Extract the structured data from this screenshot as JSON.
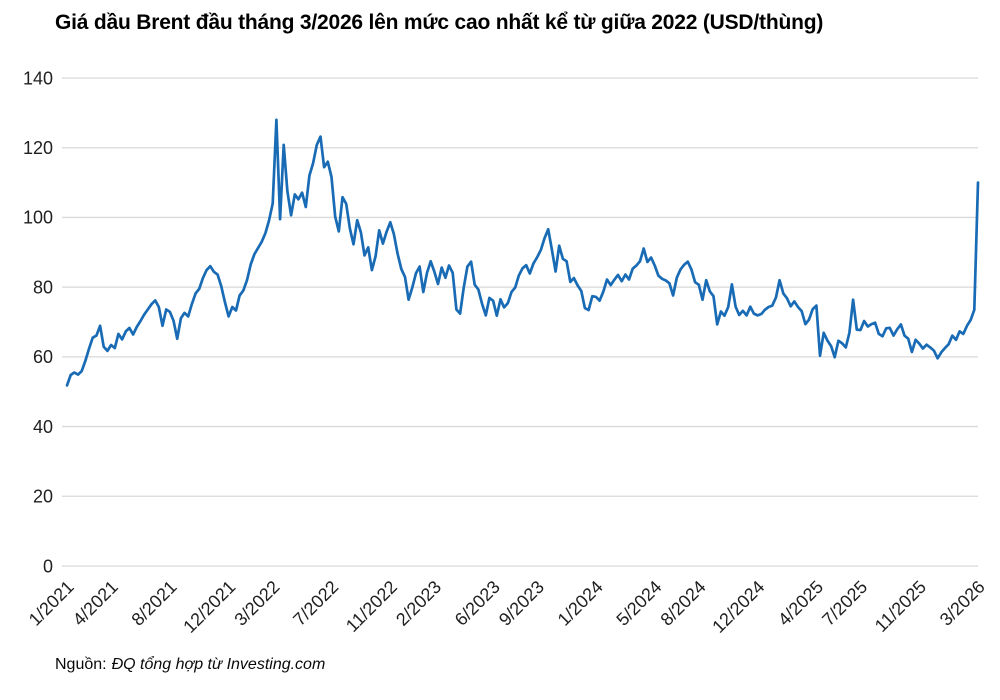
{
  "title": "Giá dầu Brent đầu tháng 3/2026 lên mức cao nhất kể từ giữa 2022 (USD/thùng)",
  "source": {
    "prefix": "Nguồn:",
    "text": "ĐQ tổng hợp từ Investing.com"
  },
  "colors": {
    "line": "#186bb4",
    "grid": "#d9d9d9",
    "axis_text": "#1f1f1f"
  },
  "chart_data": {
    "type": "line",
    "title": "Giá dầu Brent đầu tháng 3/2026 lên mức cao nhất kể từ giữa 2022 (USD/thùng)",
    "xlabel": "",
    "ylabel": "",
    "y_unit": "USD/thùng",
    "ylim": [
      0,
      140
    ],
    "y_ticks": [
      0,
      20,
      40,
      60,
      80,
      100,
      120,
      140
    ],
    "grid": "horizontal",
    "legend": "none",
    "x_unit": "months since 1/2021 (fractional = intra-month samples)",
    "x_tick_positions": [
      0,
      3,
      7,
      11,
      14,
      18,
      22,
      25,
      29,
      32,
      36,
      40,
      43,
      47,
      51,
      54,
      58,
      62
    ],
    "x_tick_labels": [
      "1/2021",
      "4/2021",
      "8/2021",
      "12/2021",
      "3/2022",
      "7/2022",
      "11/2022",
      "2/2023",
      "6/2023",
      "9/2023",
      "1/2024",
      "5/2024",
      "8/2024",
      "12/2024",
      "4/2025",
      "7/2025",
      "11/2025",
      "3/2026"
    ],
    "series_name": "Brent",
    "x_start": 0,
    "x_step": 0.25,
    "values": [
      51.8,
      54.8,
      55.5,
      54.9,
      55.9,
      58.9,
      62.3,
      65.5,
      66.1,
      68.9,
      62.9,
      61.7,
      63.4,
      62.5,
      66.6,
      65.0,
      67.3,
      68.3,
      66.4,
      68.6,
      70.3,
      72.1,
      73.6,
      75.1,
      76.2,
      74.3,
      68.9,
      73.6,
      72.9,
      70.4,
      65.2,
      71.1,
      72.6,
      71.6,
      75.2,
      78.2,
      79.5,
      82.6,
      84.9,
      86.0,
      84.4,
      83.6,
      80.2,
      75.6,
      71.6,
      74.3,
      73.3,
      77.6,
      79.0,
      82.0,
      86.5,
      89.4,
      91.2,
      93.0,
      95.5,
      99.1,
      104.0,
      128.0,
      99.5,
      120.8,
      107.5,
      100.6,
      106.6,
      105.2,
      107.1,
      103.0,
      112.0,
      115.6,
      120.8,
      123.2,
      114.4,
      116.0,
      111.6,
      100.2,
      96.0,
      105.8,
      103.9,
      96.8,
      92.3,
      99.2,
      95.7,
      89.1,
      91.4,
      84.9,
      88.9,
      96.3,
      92.5,
      95.9,
      98.6,
      95.2,
      89.6,
      85.2,
      82.9,
      76.4,
      79.9,
      84.0,
      85.9,
      78.6,
      84.1,
      87.4,
      84.5,
      80.9,
      85.6,
      82.7,
      86.2,
      84.1,
      73.6,
      72.4,
      79.8,
      85.9,
      87.3,
      80.7,
      79.3,
      75.2,
      71.9,
      76.9,
      76.1,
      71.8,
      76.5,
      74.2,
      75.4,
      78.6,
      79.9,
      83.3,
      85.4,
      86.3,
      83.9,
      86.8,
      88.6,
      90.7,
      94.0,
      96.6,
      90.7,
      84.5,
      91.9,
      88.1,
      87.4,
      81.5,
      82.6,
      80.5,
      78.9,
      74.0,
      73.4,
      77.4,
      77.2,
      76.1,
      78.7,
      82.2,
      80.6,
      82.1,
      83.5,
      81.7,
      83.6,
      82.2,
      85.3,
      86.2,
      87.4,
      91.1,
      87.2,
      88.5,
      86.2,
      83.3,
      82.4,
      81.9,
      81.1,
      77.6,
      82.7,
      85.1,
      86.4,
      87.3,
      85.0,
      81.4,
      80.7,
      76.4,
      82.0,
      78.8,
      77.4,
      69.3,
      73.0,
      71.8,
      74.3,
      80.8,
      74.4,
      72.0,
      73.2,
      71.9,
      74.4,
      72.4,
      71.9,
      72.3,
      73.5,
      74.3,
      74.7,
      77.1,
      82.0,
      78.2,
      76.8,
      74.5,
      75.9,
      74.3,
      73.1,
      69.4,
      70.7,
      73.7,
      74.7,
      60.3,
      66.9,
      64.7,
      63.1,
      59.9,
      64.6,
      63.9,
      62.7,
      66.9,
      76.4,
      67.8,
      67.7,
      70.3,
      68.7,
      69.4,
      69.8,
      66.6,
      65.9,
      68.2,
      68.3,
      66.1,
      67.9,
      69.3,
      66.1,
      65.2,
      61.4,
      64.9,
      63.8,
      62.4,
      63.5,
      62.7,
      61.8,
      59.6,
      61.3,
      62.5,
      63.6,
      66.1,
      64.9,
      67.3,
      66.6,
      68.9,
      70.6,
      73.5,
      110.0
    ]
  }
}
